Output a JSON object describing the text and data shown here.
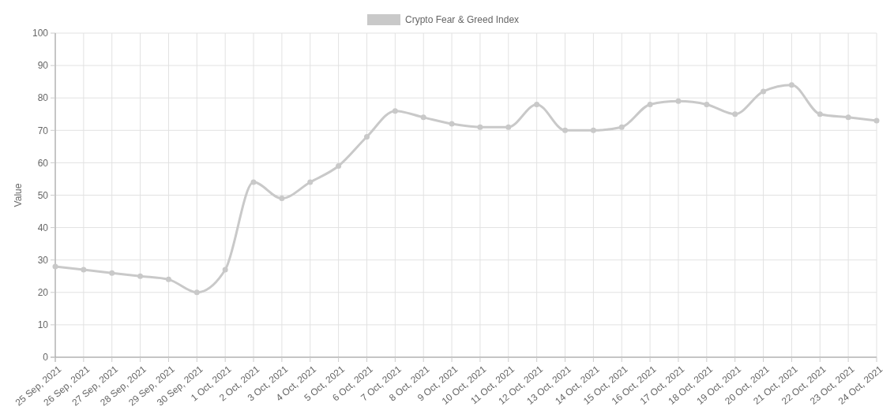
{
  "chart_data": {
    "type": "line",
    "ylabel": "Value",
    "categories": [
      "25 Sep, 2021",
      "26 Sep, 2021",
      "27 Sep, 2021",
      "28 Sep, 2021",
      "29 Sep, 2021",
      "30 Sep, 2021",
      "1 Oct, 2021",
      "2 Oct, 2021",
      "3 Oct, 2021",
      "4 Oct, 2021",
      "5 Oct, 2021",
      "6 Oct, 2021",
      "7 Oct, 2021",
      "8 Oct, 2021",
      "9 Oct, 2021",
      "10 Oct, 2021",
      "11 Oct, 2021",
      "12 Oct, 2021",
      "13 Oct, 2021",
      "14 Oct, 2021",
      "15 Oct, 2021",
      "16 Oct, 2021",
      "17 Oct, 2021",
      "18 Oct, 2021",
      "19 Oct, 2021",
      "20 Oct, 2021",
      "21 Oct, 2021",
      "22 Oct, 2021",
      "23 Oct, 2021",
      "24 Oct, 2021"
    ],
    "series": [
      {
        "name": "Crypto Fear & Greed Index",
        "color": "#c9c9c9",
        "values": [
          28,
          27,
          26,
          25,
          24,
          20,
          27,
          54,
          49,
          54,
          59,
          68,
          76,
          74,
          72,
          71,
          71,
          78,
          70,
          70,
          71,
          78,
          79,
          78,
          75,
          82,
          84,
          75,
          74,
          73
        ]
      }
    ],
    "ylim": [
      0,
      100
    ],
    "yticks": [
      0,
      10,
      20,
      30,
      40,
      50,
      60,
      70,
      80,
      90,
      100
    ],
    "grid": true,
    "legend": "top",
    "marker": "circle",
    "line_style": "solid"
  }
}
